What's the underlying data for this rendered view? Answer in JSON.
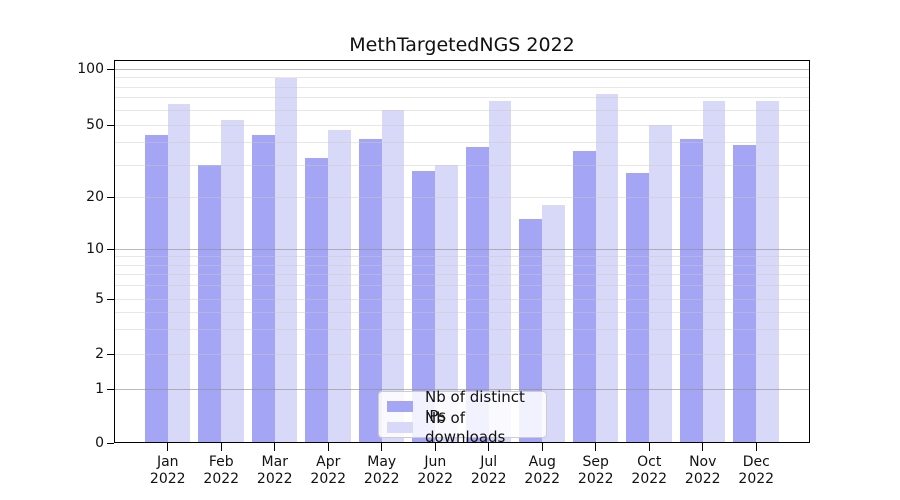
{
  "title": "MethTargetedNGS 2022",
  "chart_data": {
    "type": "bar",
    "title": "MethTargetedNGS 2022",
    "categories": [
      "Jan",
      "Feb",
      "Mar",
      "Apr",
      "May",
      "Jun",
      "Jul",
      "Aug",
      "Sep",
      "Oct",
      "Nov",
      "Dec"
    ],
    "category_year": "2022",
    "series": [
      {
        "name": "Nb of distinct IPs",
        "color": "#a5a5f5",
        "values": [
          44,
          30,
          44,
          33,
          42,
          28,
          38,
          15,
          36,
          27,
          42,
          39
        ]
      },
      {
        "name": "Nb of downloads",
        "color": "#d8d8f8",
        "values": [
          65,
          53,
          90,
          47,
          60,
          30,
          67,
          18,
          73,
          50,
          67,
          67
        ]
      }
    ],
    "yscale": "symlog",
    "ylim": [
      0,
      110
    ],
    "yticks": [
      0,
      1,
      2,
      5,
      10,
      20,
      50,
      100
    ],
    "yticklabels": [
      "0",
      "1",
      "2",
      "5",
      "10",
      "20",
      "50",
      "100"
    ],
    "grid": true,
    "legend_position": "lower center"
  },
  "colors": {
    "bar_distinct_ips": "#a5a5f5",
    "bar_downloads": "#d8d8f8",
    "grid_major": "#8f8f8f",
    "grid_minor": "#c9c9c9",
    "spine": "#000000",
    "text": "#111111"
  }
}
